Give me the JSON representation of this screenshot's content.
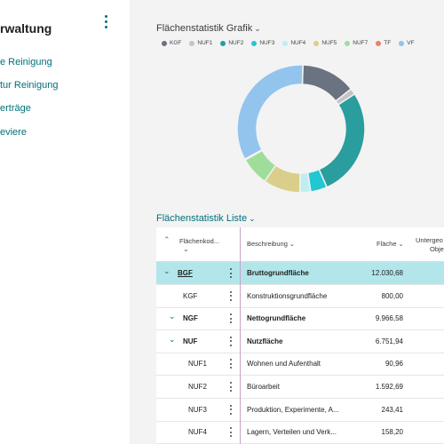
{
  "nav": {
    "title": "rwaltung",
    "links": [
      "e Reinigung",
      "tur Reinigung",
      "erträge",
      "eviere"
    ]
  },
  "chart_card": {
    "title": "Flächenstatistik Grafik"
  },
  "chart_data": {
    "type": "pie",
    "categories": [
      "KGF",
      "NUF1",
      "NUF2",
      "NUF3",
      "NUF4",
      "NUF5",
      "NUF7",
      "TF",
      "VF"
    ],
    "values": [
      800,
      90.96,
      1592.69,
      243.41,
      158.2,
      540,
      420,
      15,
      1930
    ],
    "colors": [
      "#6b7280",
      "#c4c4c4",
      "#2a9d9e",
      "#22c7d4",
      "#bfeef2",
      "#d9cf8a",
      "#9fdd9b",
      "#e8826a",
      "#92c4ee"
    ],
    "donut": true,
    "legend": "top",
    "title": "Flächenstatistik Grafik"
  },
  "list_card": {
    "title": "Flächenstatistik Liste",
    "columns": {
      "code": "Flächenkod...",
      "description": "Beschreibung",
      "area": "Fläche",
      "extra_line1": "Untergeo",
      "extra_line2": "Obje"
    },
    "rows": [
      {
        "code": "BGF",
        "description": "Bruttogrundfläche",
        "area": "12.030,68",
        "level": 0,
        "expanded": true,
        "bold": true,
        "selected": true
      },
      {
        "code": "KGF",
        "description": "Konstruktionsgrundfläche",
        "area": "800,00",
        "level": 1,
        "expanded": null,
        "bold": false,
        "selected": false
      },
      {
        "code": "NGF",
        "description": "Nettogrundfläche",
        "area": "9.966,58",
        "level": 1,
        "expanded": true,
        "bold": true,
        "selected": false
      },
      {
        "code": "NUF",
        "description": "Nutzfläche",
        "area": "6.751,94",
        "level": 2,
        "expanded": true,
        "bold": true,
        "selected": false
      },
      {
        "code": "NUF1",
        "description": "Wohnen und Aufenthalt",
        "area": "90,96",
        "level": 3,
        "expanded": null,
        "bold": false,
        "selected": false
      },
      {
        "code": "NUF2",
        "description": "Büroarbeit",
        "area": "1.592,69",
        "level": 3,
        "expanded": null,
        "bold": false,
        "selected": false
      },
      {
        "code": "NUF3",
        "description": "Produktion, Experimente, A...",
        "area": "243,41",
        "level": 3,
        "expanded": null,
        "bold": false,
        "selected": false
      },
      {
        "code": "NUF4",
        "description": "Lagern, Verteilen und Verk...",
        "area": "158,20",
        "level": 3,
        "expanded": null,
        "bold": false,
        "selected": false
      }
    ]
  }
}
